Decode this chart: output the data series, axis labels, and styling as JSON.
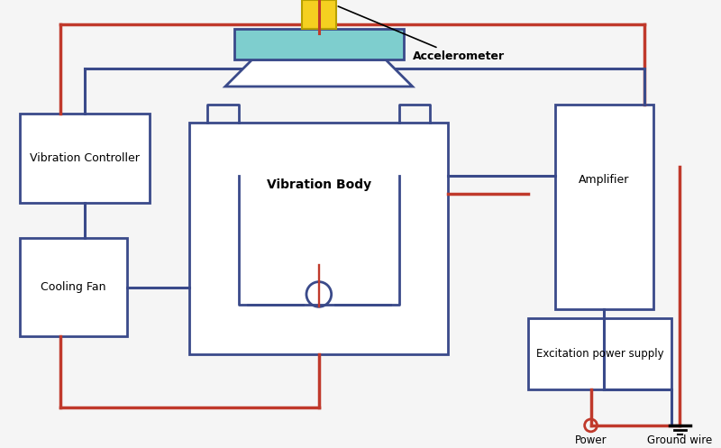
{
  "bg_color": "#f5f5f5",
  "blue": "#3a4a8a",
  "red": "#c0392b",
  "cyan": "#7ecece",
  "yellow": "#f5d020",
  "dark_red": "#8b1a1a",
  "lw_main": 2.0,
  "lw_wire": 2.2,
  "labels": {
    "accelerometer": "Accelerometer",
    "vibration_controller": "Vibration Controller",
    "amplifier": "Amplifier",
    "vibration_body": "Vibration Body",
    "cooling_fan": "Cooling Fan",
    "excitation": "Excitation power supply",
    "power": "Power",
    "ground": "Ground wire"
  }
}
